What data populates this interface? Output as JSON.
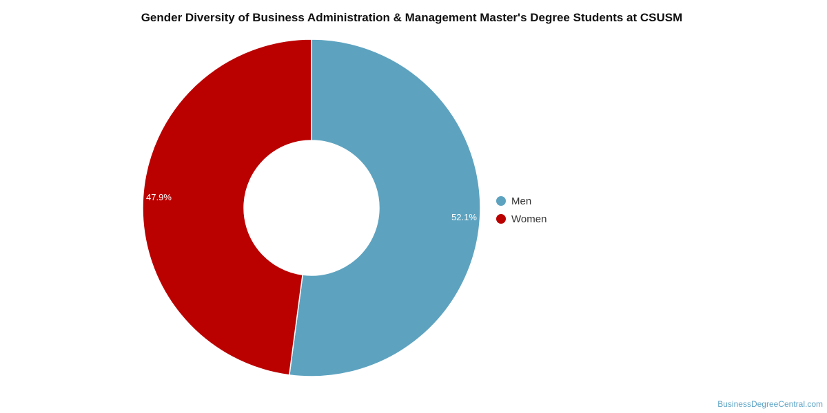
{
  "chart_data": {
    "type": "pie",
    "title": "Gender Diversity of Business Administration & Management Master's Degree Students at CSUSM",
    "donut": true,
    "slices": [
      {
        "label": "Men",
        "value": 52.1,
        "value_label": "52.1%",
        "color": "#5da3c0"
      },
      {
        "label": "Women",
        "value": 47.9,
        "value_label": "47.9%",
        "color": "#bb0000"
      }
    ],
    "legend_position": "right"
  },
  "watermark": "BusinessDegreeCentral.com"
}
